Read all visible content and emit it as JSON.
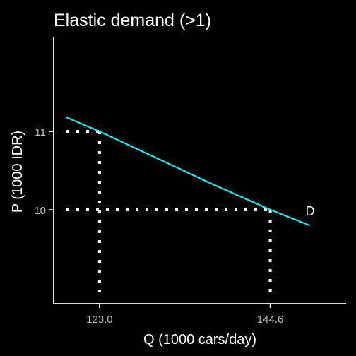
{
  "chart_data": {
    "type": "line",
    "title": "Elastic demand (>1)",
    "xlabel": "Q (1000 cars/day)",
    "ylabel": "P (1000 IDR)",
    "xlim": [
      117.2,
      154.2
    ],
    "ylim": [
      8.8,
      12.2
    ],
    "x_ticks": [
      {
        "value": 123.0,
        "label": "123.0"
      },
      {
        "value": 144.6,
        "label": "144.6"
      }
    ],
    "y_ticks": [
      {
        "value": 10,
        "label": "10"
      },
      {
        "value": 11,
        "label": "11"
      }
    ],
    "grid": false,
    "series": [
      {
        "label": "D",
        "color": "#22e5ee",
        "x": [
          118.8,
          123.0,
          130.0,
          137.0,
          144.6,
          149.6
        ],
        "y": [
          11.18,
          11.0,
          10.67,
          10.34,
          10.0,
          9.8
        ]
      }
    ],
    "reference_points": [
      {
        "x": 123.0,
        "y": 11
      },
      {
        "x": 144.6,
        "y": 10
      }
    ],
    "colors": {
      "background": "#000000",
      "axis": "#ffffff",
      "reference": "#ffffff",
      "tick_text": "#bdbdbd"
    }
  }
}
